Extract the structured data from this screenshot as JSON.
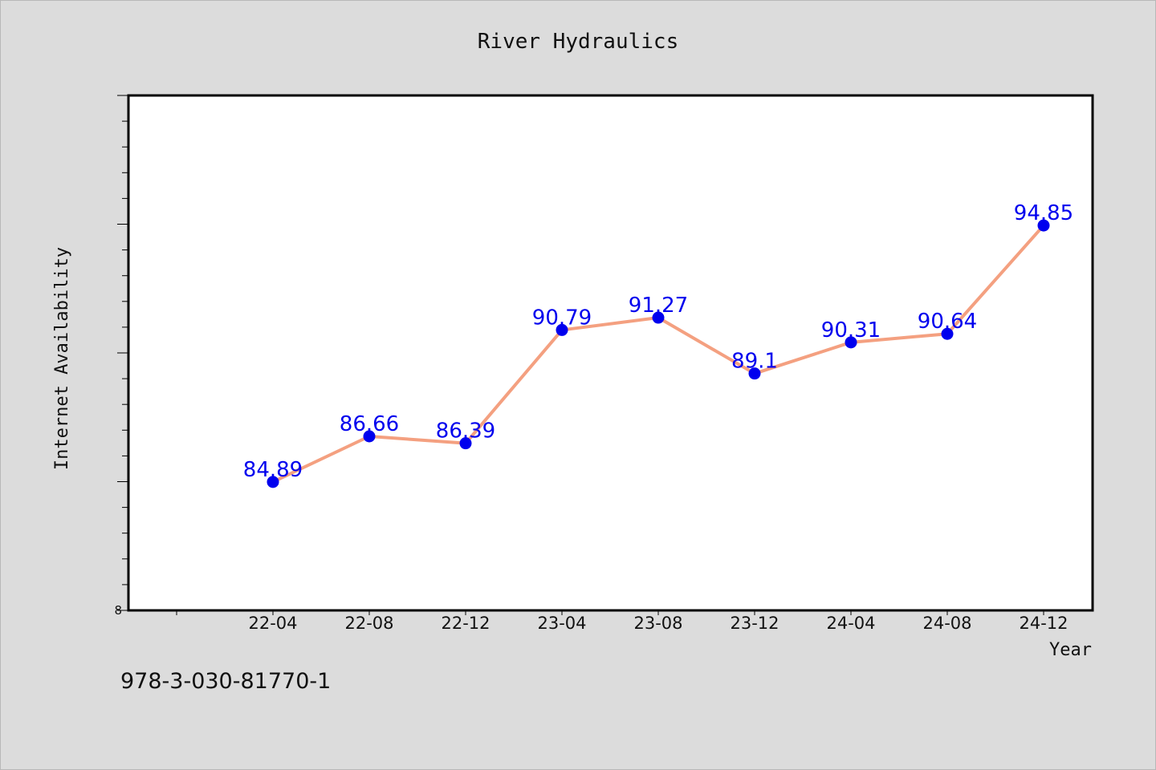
{
  "chart_data": {
    "type": "line",
    "title": "River Hydraulics",
    "xlabel": "Year",
    "ylabel": "Internet Availability",
    "categories": [
      "22-04",
      "22-08",
      "22-12",
      "23-04",
      "23-08",
      "23-12",
      "24-04",
      "24-08",
      "24-12"
    ],
    "series": [
      {
        "values": [
          84.89,
          86.66,
          86.39,
          90.79,
          91.27,
          89.1,
          90.31,
          90.64,
          94.85
        ]
      }
    ],
    "y_tick_labels": [
      "8"
    ],
    "ylim": [
      79.9,
      99.9
    ],
    "grid": false,
    "legend": "none",
    "colors": {
      "line": "#f4a080",
      "marker": "#0000ee",
      "label": "#0000ee",
      "plot_background": "#ffffff",
      "page_background": "#dcdcdc"
    }
  },
  "footnote": "978-3-030-81770-1"
}
